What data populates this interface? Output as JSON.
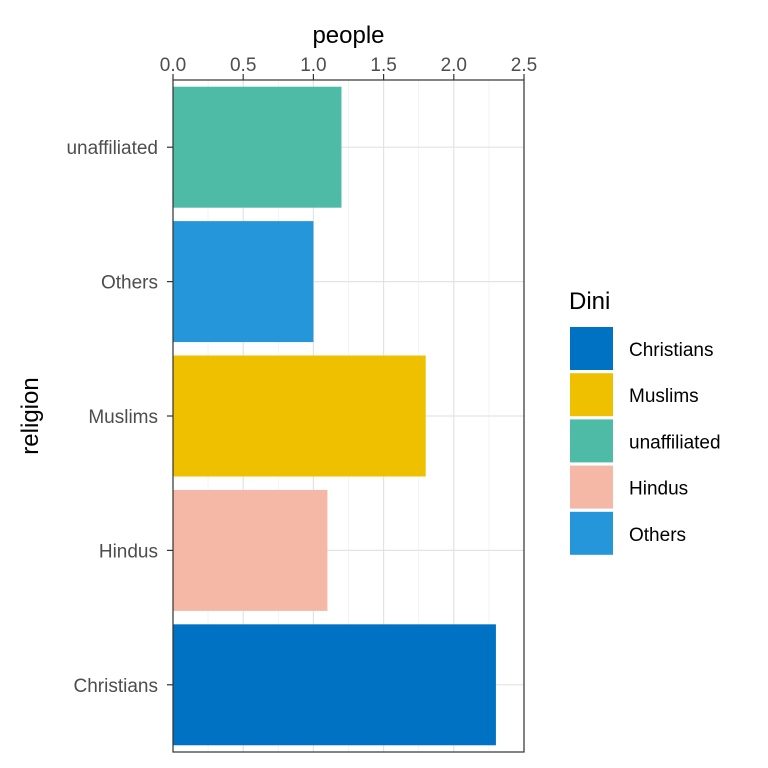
{
  "chart_data": {
    "type": "bar",
    "orientation": "horizontal",
    "xlabel": "people",
    "ylabel": "religion",
    "xlim": [
      0,
      2.5
    ],
    "x_ticks": [
      "0.0",
      "0.5",
      "1.0",
      "1.5",
      "2.0",
      "2.5"
    ],
    "grid": true,
    "categories": [
      "unaffiliated",
      "Others",
      "Muslims",
      "Hindus",
      "Christians"
    ],
    "values": [
      1.2,
      1.0,
      1.8,
      1.1,
      2.3
    ],
    "colors": [
      "#4DBBA5",
      "#2596D9",
      "#EEC000",
      "#F6B8A6",
      "#0072C4"
    ],
    "legend": {
      "title": "Dini",
      "position": "right",
      "entries": [
        {
          "label": "Christians",
          "color": "#0072C4"
        },
        {
          "label": "Muslims",
          "color": "#EEC000"
        },
        {
          "label": "unaffiliated",
          "color": "#4DBBA5"
        },
        {
          "label": "Hindus",
          "color": "#F6B8A6"
        },
        {
          "label": "Others",
          "color": "#2596D9"
        }
      ]
    }
  }
}
